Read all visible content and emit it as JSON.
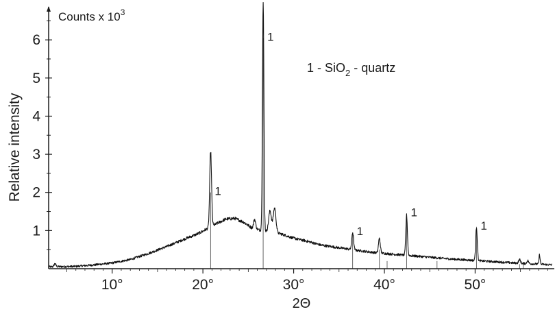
{
  "chart_data": {
    "type": "line",
    "title": "",
    "y_unit_label": "Counts x 10",
    "y_unit_exponent": "3",
    "ylabel": "Relative intensity",
    "xlabel": "2Θ",
    "xlim": [
      3,
      58.5
    ],
    "ylim": [
      0,
      6.65
    ],
    "x_ticks": [
      10,
      20,
      30,
      40,
      50
    ],
    "x_tick_labels": [
      "10°",
      "20°",
      "30°",
      "40°",
      "50°"
    ],
    "y_ticks": [
      1,
      2,
      3,
      4,
      5,
      6
    ],
    "y_tick_labels": [
      "1",
      "2",
      "3",
      "4",
      "5",
      "6"
    ],
    "legend": {
      "prefix": "1 - SiO",
      "subscript": "2",
      "suffix": " - quartz"
    },
    "grid": false,
    "series": [
      {
        "values_description_free": true,
        "baseline": [
          [
            3.0,
            0.05
          ],
          [
            6.0,
            0.06
          ],
          [
            8.0,
            0.1
          ],
          [
            10.0,
            0.15
          ],
          [
            12.0,
            0.24
          ],
          [
            14.0,
            0.4
          ],
          [
            16.0,
            0.58
          ],
          [
            18.0,
            0.78
          ],
          [
            19.5,
            0.92
          ],
          [
            20.5,
            1.05
          ],
          [
            21.5,
            1.18
          ],
          [
            22.5,
            1.3
          ],
          [
            23.5,
            1.32
          ],
          [
            24.5,
            1.22
          ],
          [
            25.5,
            1.05
          ],
          [
            27.0,
            0.98
          ],
          [
            28.5,
            0.92
          ],
          [
            30.0,
            0.8
          ],
          [
            31.5,
            0.72
          ],
          [
            33.0,
            0.62
          ],
          [
            35.0,
            0.55
          ],
          [
            37.0,
            0.48
          ],
          [
            39.0,
            0.42
          ],
          [
            41.0,
            0.38
          ],
          [
            43.0,
            0.34
          ],
          [
            45.0,
            0.3
          ],
          [
            47.0,
            0.26
          ],
          [
            49.0,
            0.23
          ],
          [
            51.0,
            0.2
          ],
          [
            53.0,
            0.17
          ],
          [
            55.0,
            0.14
          ],
          [
            57.0,
            0.12
          ],
          [
            58.5,
            0.1
          ]
        ],
        "peaks": [
          [
            20.85,
            1.98,
            0.1
          ],
          [
            26.64,
            6.0,
            0.08
          ],
          [
            27.4,
            0.55,
            0.15
          ],
          [
            27.9,
            0.65,
            0.15
          ],
          [
            25.7,
            0.25,
            0.12
          ],
          [
            36.5,
            0.45,
            0.1
          ],
          [
            39.45,
            0.38,
            0.1
          ],
          [
            42.45,
            1.05,
            0.09
          ],
          [
            50.15,
            0.88,
            0.09
          ],
          [
            54.9,
            0.1,
            0.1
          ],
          [
            55.8,
            0.08,
            0.1
          ],
          [
            57.1,
            0.25,
            0.06
          ],
          [
            3.7,
            0.08,
            0.1
          ]
        ]
      }
    ],
    "reference_lines": [
      {
        "x": 20.85,
        "height": 2.0
      },
      {
        "x": 26.64,
        "height": 6.05
      },
      {
        "x": 36.5,
        "height": 0.95
      },
      {
        "x": 39.45,
        "height": 0.5
      },
      {
        "x": 40.3,
        "height": 0.2
      },
      {
        "x": 42.45,
        "height": 1.45
      },
      {
        "x": 45.8,
        "height": 0.2
      },
      {
        "x": 50.15,
        "height": 1.1
      },
      {
        "x": 54.9,
        "height": 0.12
      },
      {
        "x": 55.3,
        "height": 0.18
      }
    ],
    "peak_labels": [
      {
        "x": 20.85,
        "y": 2.0,
        "text": "1"
      },
      {
        "x": 26.64,
        "y": 6.05,
        "text": "1"
      },
      {
        "x": 36.5,
        "y": 0.95,
        "text": "1"
      },
      {
        "x": 42.45,
        "y": 1.45,
        "text": "1"
      },
      {
        "x": 50.15,
        "y": 1.1,
        "text": "1"
      }
    ]
  }
}
